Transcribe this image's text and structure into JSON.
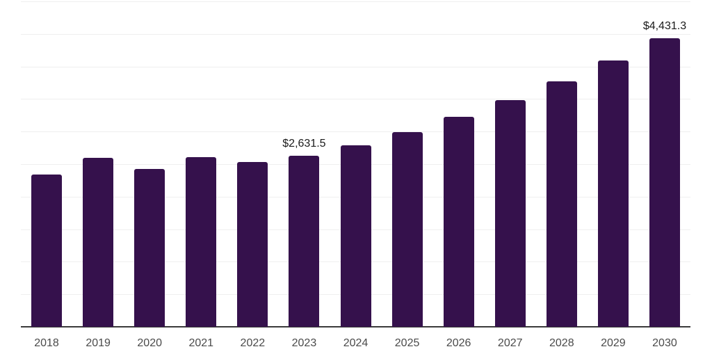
{
  "chart_data": {
    "type": "bar",
    "title": "",
    "xlabel": "",
    "ylabel": "",
    "categories": [
      "2018",
      "2019",
      "2020",
      "2021",
      "2022",
      "2023",
      "2024",
      "2025",
      "2026",
      "2027",
      "2028",
      "2029",
      "2030"
    ],
    "values": [
      2340,
      2595,
      2430,
      2610,
      2535,
      2631.5,
      2790,
      2990,
      3225,
      3480,
      3770,
      4090,
      4431.3
    ],
    "data_labels": [
      {
        "category": "2023",
        "text": "$2,631.5"
      },
      {
        "category": "2030",
        "text": "$4,431.3"
      }
    ],
    "ylim": [
      0,
      5000
    ],
    "gridline_step": 500,
    "grid": "horizontal-only",
    "y_tick_labels_visible": false,
    "legend_position": "none",
    "colors": {
      "bar": "#35114C",
      "background": "#FFFFFF",
      "gridline": "#EFEFEF",
      "axis_line": "#3A3A3A",
      "x_tick_label": "#4A4A4A",
      "data_label": "#1A1A1A"
    }
  }
}
